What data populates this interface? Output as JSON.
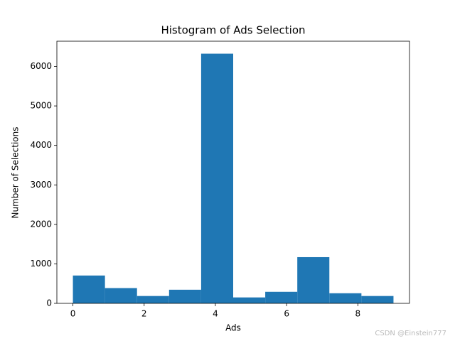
{
  "chart_data": {
    "type": "histogram",
    "title": "Histogram of Ads Selection",
    "x_label": "Ads",
    "y_label": "Number of Selections",
    "bins": [
      0,
      0.9,
      1.8,
      2.7,
      3.6,
      4.5,
      5.4,
      6.3,
      7.2,
      8.1,
      9
    ],
    "values": [
      705,
      387,
      186,
      345,
      6323,
      150,
      292,
      1170,
      256,
      186
    ],
    "color": "#1f77b4",
    "xlim": [
      -0.45,
      9.45
    ],
    "xticks": [
      0,
      2,
      4,
      6,
      8
    ],
    "ylim": [
      0,
      6639
    ],
    "yticks": [
      0,
      1000,
      2000,
      3000,
      4000,
      5000,
      6000
    ],
    "watermark": "CSDN @Einstein777"
  }
}
